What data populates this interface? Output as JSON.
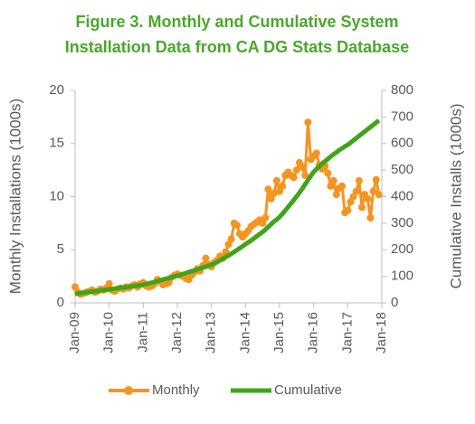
{
  "chart_data": {
    "type": "line",
    "title": [
      "Figure 3. Monthly and Cumulative System",
      "Installation Data from CA DG Stats Database"
    ],
    "y_label": "Monthly Installations (1000s)",
    "y2_label": "Cumulative Installs (1000s)",
    "categories": [
      "Jan-09",
      null,
      null,
      null,
      null,
      null,
      null,
      null,
      null,
      null,
      null,
      null,
      "Jan-10",
      null,
      null,
      null,
      null,
      null,
      null,
      null,
      null,
      null,
      null,
      null,
      "Jan-11",
      null,
      null,
      null,
      null,
      null,
      null,
      null,
      null,
      null,
      null,
      null,
      "Jan-12",
      null,
      null,
      null,
      null,
      null,
      null,
      null,
      null,
      null,
      null,
      null,
      "Jan-13",
      null,
      null,
      null,
      null,
      null,
      null,
      null,
      null,
      null,
      null,
      null,
      "Jan-14",
      null,
      null,
      null,
      null,
      null,
      null,
      null,
      null,
      null,
      null,
      null,
      "Jan-15",
      null,
      null,
      null,
      null,
      null,
      null,
      null,
      null,
      null,
      null,
      null,
      "Jan-16",
      null,
      null,
      null,
      null,
      null,
      null,
      null,
      null,
      null,
      null,
      null,
      "Jan-17",
      null,
      null,
      null,
      null,
      null,
      null,
      null,
      null,
      null,
      null,
      null,
      "Jan-18"
    ],
    "series": [
      {
        "name": "Monthly",
        "color": "#f7941d",
        "axis": "y",
        "markers": true,
        "values": [
          1.5,
          1.0,
          0.8,
          0.9,
          1.0,
          1.1,
          1.2,
          1.0,
          1.1,
          1.3,
          1.2,
          1.4,
          1.8,
          1.2,
          1.1,
          1.3,
          1.4,
          1.3,
          1.5,
          1.4,
          1.6,
          1.7,
          1.5,
          1.8,
          1.9,
          1.6,
          1.5,
          1.6,
          1.8,
          2.2,
          2.0,
          1.7,
          1.8,
          1.9,
          2.4,
          2.6,
          2.7,
          2.6,
          2.5,
          2.3,
          2.2,
          2.6,
          2.9,
          3.2,
          3.0,
          3.5,
          4.2,
          3.6,
          3.4,
          3.8,
          4.0,
          4.4,
          4.2,
          4.8,
          5.5,
          6.0,
          7.5,
          7.3,
          6.5,
          6.2,
          6.5,
          6.8,
          7.2,
          7.4,
          7.6,
          7.8,
          7.5,
          8.0,
          10.7,
          9.8,
          10.3,
          11.5,
          10.5,
          11.0,
          12.0,
          12.3,
          12.0,
          11.8,
          12.5,
          13.2,
          12.8,
          12.0,
          17.0,
          13.5,
          13.8,
          14.1,
          13.0,
          12.6,
          12.9,
          12.2,
          11.0,
          11.5,
          10.2,
          10.8,
          11.0,
          8.5,
          8.7,
          9.5,
          10.0,
          10.5,
          11.5,
          9.0,
          10.2,
          9.8,
          8.0,
          10.5,
          11.6,
          10.2,
          null
        ]
      },
      {
        "name": "Cumulative",
        "color": "#3ea51a",
        "axis": "y2",
        "markers": false,
        "values": [
          34,
          35,
          37,
          38,
          40,
          41,
          42,
          44,
          45,
          47,
          48,
          49,
          51,
          52,
          54,
          55,
          57,
          58,
          59,
          61,
          62,
          64,
          65,
          66,
          68,
          71,
          74,
          76,
          79,
          82,
          85,
          88,
          91,
          93,
          96,
          99,
          102,
          105,
          109,
          112,
          116,
          119,
          122,
          126,
          129,
          133,
          136,
          140,
          143,
          148,
          154,
          160,
          166,
          172,
          178,
          185,
          192,
          199,
          206,
          213,
          221,
          228,
          235,
          243,
          251,
          259,
          267,
          276,
          286,
          296,
          306,
          314,
          323,
          335,
          348,
          361,
          374,
          387,
          401,
          415,
          430,
          446,
          462,
          478,
          493,
          504,
          514,
          524,
          533,
          542,
          551,
          559,
          567,
          575,
          582,
          589,
          595,
          603,
          612,
          620,
          629,
          637,
          645,
          654,
          662,
          670,
          679,
          687,
          null
        ]
      }
    ],
    "ylim": [
      0,
      20
    ],
    "yticks": [
      0,
      5,
      10,
      15,
      20
    ],
    "y2lim": [
      0,
      800
    ],
    "y2ticks": [
      0,
      100,
      200,
      300,
      400,
      500,
      600,
      700,
      800
    ]
  }
}
